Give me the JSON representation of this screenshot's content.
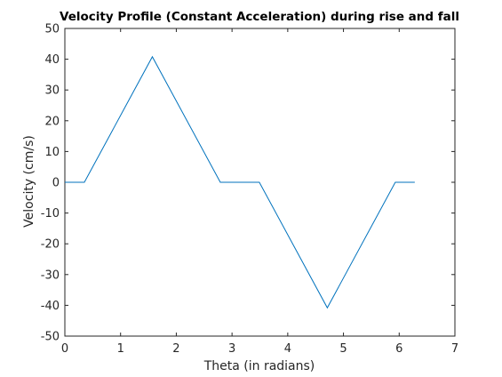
{
  "chart_data": {
    "type": "line",
    "title": "Velocity Profile (Constant Acceleration) during rise and fall",
    "xlabel": "Theta (in radians)",
    "ylabel": "Velocity (cm/s)",
    "xlim": [
      0,
      7
    ],
    "ylim": [
      -50,
      50
    ],
    "xticks": [
      0,
      1,
      2,
      3,
      4,
      5,
      6,
      7
    ],
    "yticks": [
      -50,
      -40,
      -30,
      -20,
      -10,
      0,
      10,
      20,
      30,
      40,
      50
    ],
    "grid": false,
    "legend": "none",
    "series": [
      {
        "color": "#0072BD",
        "x": [
          0,
          0.35,
          1.57,
          2.79,
          3.49,
          4.71,
          5.93,
          6.28
        ],
        "y": [
          0,
          0,
          40.8,
          0,
          0,
          -40.8,
          0,
          0
        ]
      }
    ]
  }
}
